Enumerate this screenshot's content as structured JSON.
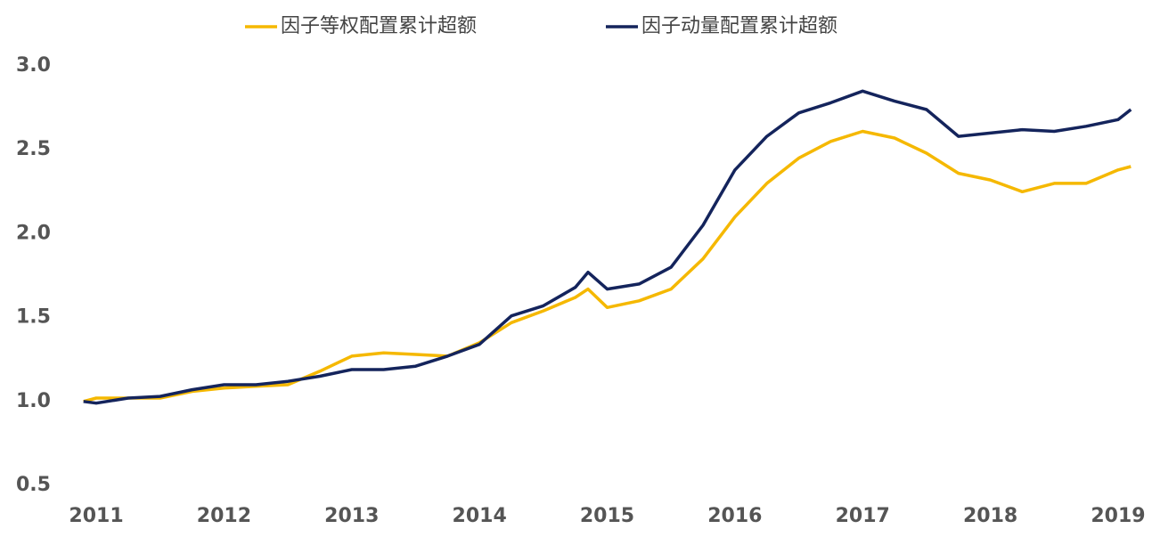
{
  "chart_data": {
    "type": "line",
    "x": [
      2010.9,
      2011.0,
      2011.25,
      2011.5,
      2011.75,
      2012.0,
      2012.25,
      2012.5,
      2012.75,
      2013.0,
      2013.25,
      2013.5,
      2013.75,
      2014.0,
      2014.25,
      2014.5,
      2014.75,
      2014.85,
      2015.0,
      2015.25,
      2015.5,
      2015.75,
      2016.0,
      2016.25,
      2016.5,
      2016.75,
      2017.0,
      2017.25,
      2017.5,
      2017.75,
      2018.0,
      2018.25,
      2018.5,
      2018.75,
      2019.0,
      2019.1
    ],
    "series": [
      {
        "name": "因子等权配置累计超额",
        "color": "#f5b800",
        "values": [
          1.0,
          1.02,
          1.02,
          1.02,
          1.06,
          1.08,
          1.09,
          1.1,
          1.18,
          1.27,
          1.29,
          1.28,
          1.27,
          1.35,
          1.47,
          1.54,
          1.62,
          1.67,
          1.56,
          1.6,
          1.67,
          1.85,
          2.1,
          2.3,
          2.45,
          2.55,
          2.61,
          2.57,
          2.48,
          2.36,
          2.32,
          2.25,
          2.3,
          2.3,
          2.38,
          2.4
        ]
      },
      {
        "name": "因子动量配置累计超额",
        "color": "#14245c",
        "values": [
          1.0,
          0.99,
          1.02,
          1.03,
          1.07,
          1.1,
          1.1,
          1.12,
          1.15,
          1.19,
          1.19,
          1.21,
          1.27,
          1.34,
          1.51,
          1.57,
          1.68,
          1.77,
          1.67,
          1.7,
          1.8,
          2.05,
          2.38,
          2.58,
          2.72,
          2.78,
          2.85,
          2.79,
          2.74,
          2.58,
          2.6,
          2.62,
          2.61,
          2.64,
          2.68,
          2.74
        ]
      }
    ],
    "xlim": [
      2010.9,
      2019.1
    ],
    "xticks": [
      2011,
      2012,
      2013,
      2014,
      2015,
      2016,
      2017,
      2018,
      2019
    ],
    "ylim": [
      0.5,
      3.0
    ],
    "yticks": [
      {
        "value": 0.5,
        "label": "0.5"
      },
      {
        "value": 1.0,
        "label": "1.0"
      },
      {
        "value": 1.5,
        "label": "1.5"
      },
      {
        "value": 2.0,
        "label": "2.0"
      },
      {
        "value": 2.5,
        "label": "2.5"
      },
      {
        "value": 3.0,
        "label": "3.0"
      }
    ],
    "grid": false
  }
}
